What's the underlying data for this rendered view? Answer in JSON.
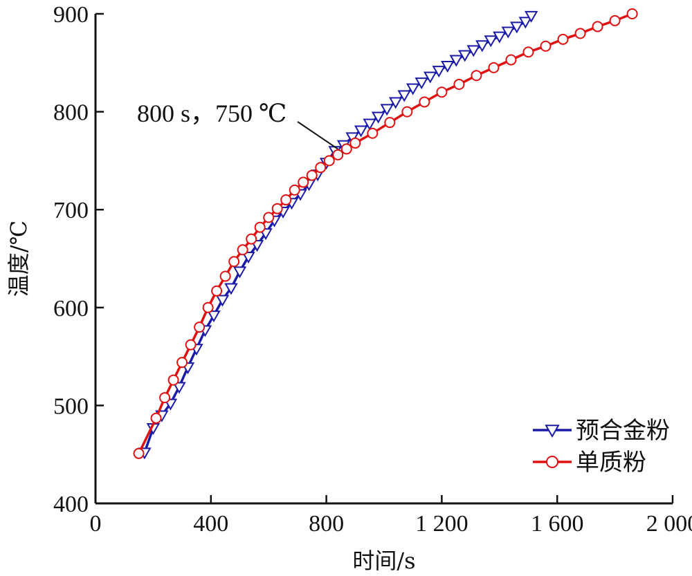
{
  "chart_data": {
    "type": "line",
    "xlabel": "时间/s",
    "ylabel": "温度/℃",
    "xlim": [
      0,
      2000
    ],
    "ylim": [
      400,
      900
    ],
    "x_ticks": [
      0,
      400,
      800,
      1200,
      1600,
      2000
    ],
    "x_tick_labels": [
      "0",
      "400",
      "800",
      "1 200",
      "1 600",
      "2 000"
    ],
    "y_ticks": [
      400,
      500,
      600,
      700,
      800,
      900
    ],
    "y_tick_labels": [
      "400",
      "500",
      "600",
      "700",
      "800",
      "900"
    ],
    "grid": false,
    "legend_position": "bottom-right",
    "annotation": {
      "text": "800 s，750 ℃",
      "point": [
        840,
        762
      ]
    },
    "series": [
      {
        "name": "预合金粉",
        "color": "#1a1aa8",
        "marker": "triangle-down",
        "x": [
          170,
          200,
          230,
          260,
          290,
          320,
          350,
          380,
          410,
          440,
          470,
          500,
          530,
          560,
          590,
          620,
          650,
          680,
          710,
          740,
          770,
          800,
          830,
          860,
          890,
          920,
          950,
          980,
          1010,
          1040,
          1070,
          1100,
          1130,
          1160,
          1190,
          1220,
          1250,
          1280,
          1310,
          1340,
          1370,
          1400,
          1430,
          1460,
          1490,
          1510
        ],
        "y": [
          452,
          477,
          490,
          502,
          519,
          539,
          558,
          577,
          592,
          608,
          620,
          637,
          652,
          664,
          676,
          689,
          698,
          707,
          716,
          726,
          736,
          748,
          760,
          766,
          774,
          781,
          788,
          795,
          803,
          810,
          817,
          824,
          830,
          836,
          842,
          847,
          853,
          858,
          863,
          868,
          873,
          877,
          882,
          887,
          892,
          898
        ]
      },
      {
        "name": "单质粉",
        "color": "#e01010",
        "marker": "circle",
        "x": [
          150,
          210,
          240,
          270,
          300,
          330,
          360,
          390,
          420,
          450,
          480,
          510,
          540,
          570,
          600,
          630,
          660,
          690,
          720,
          750,
          780,
          810,
          840,
          870,
          900,
          960,
          1020,
          1080,
          1140,
          1200,
          1260,
          1320,
          1380,
          1440,
          1500,
          1560,
          1620,
          1680,
          1740,
          1800,
          1860
        ],
        "y": [
          451,
          487,
          508,
          526,
          544,
          562,
          580,
          600,
          617,
          632,
          647,
          659,
          670,
          682,
          692,
          701,
          710,
          720,
          728,
          735,
          743,
          750,
          756,
          762,
          768,
          778,
          789,
          800,
          810,
          820,
          828,
          837,
          845,
          853,
          861,
          867,
          874,
          880,
          887,
          893,
          900
        ]
      }
    ]
  }
}
